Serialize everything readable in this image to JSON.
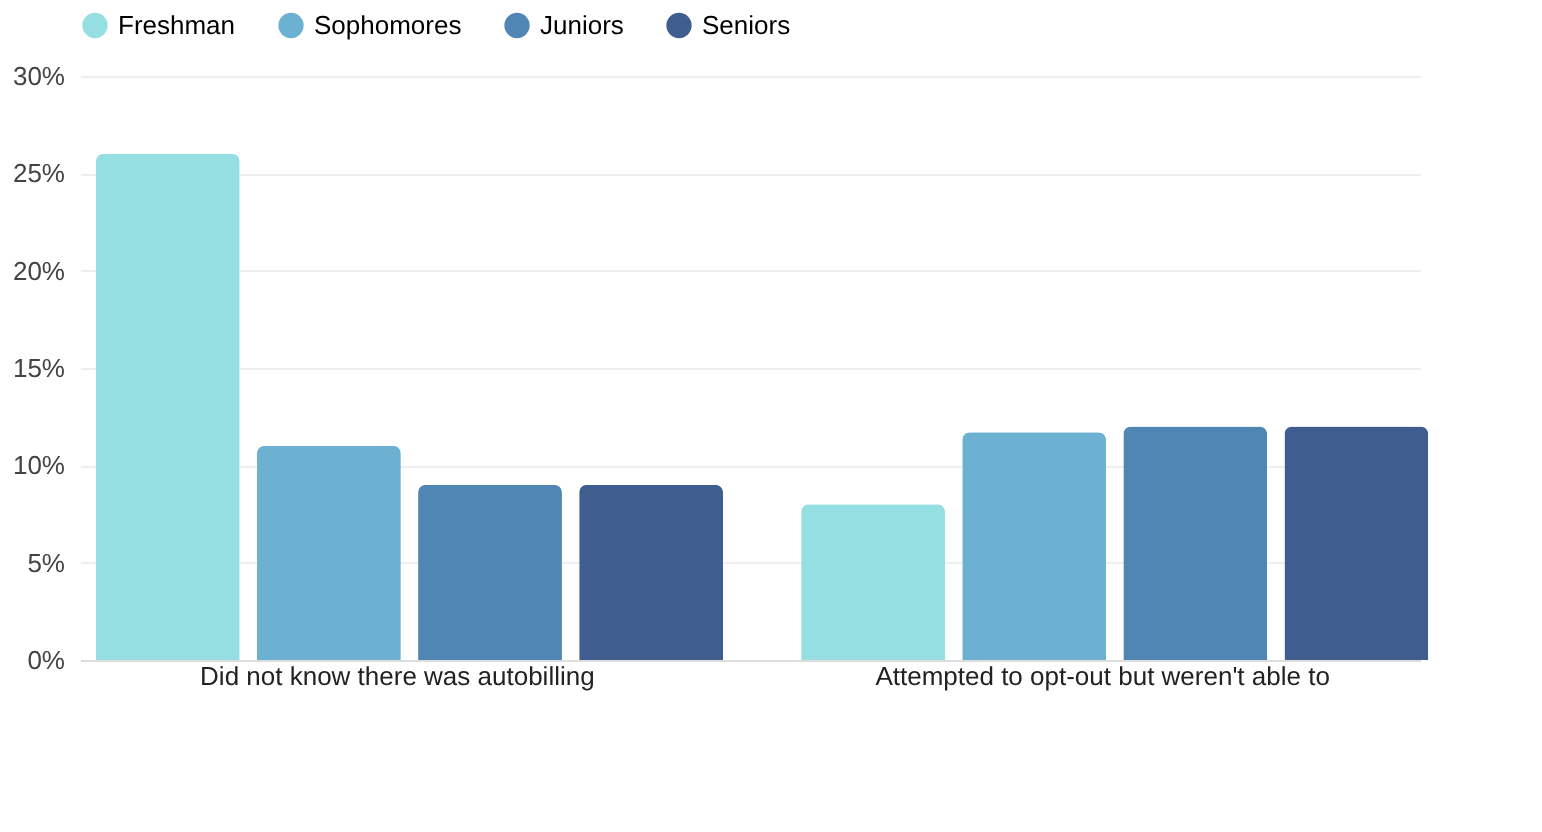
{
  "chart_data": {
    "type": "bar",
    "categories": [
      "Did not know there was autobilling",
      "Attempted to opt-out but weren't able to"
    ],
    "series": [
      {
        "name": "Freshman",
        "color": "#95dfe3",
        "values": [
          26,
          8
        ]
      },
      {
        "name": "Sophomores",
        "color": "#6cb1d1",
        "values": [
          11,
          11.7
        ]
      },
      {
        "name": "Juniors",
        "color": "#4f86b4",
        "values": [
          9,
          12
        ]
      },
      {
        "name": "Seniors",
        "color": "#3f5d8f",
        "values": [
          9,
          12
        ]
      }
    ],
    "ylim": [
      0,
      30
    ],
    "yticks": [
      {
        "value": 0,
        "label": "0%"
      },
      {
        "value": 5,
        "label": "5%"
      },
      {
        "value": 10,
        "label": "10%"
      },
      {
        "value": 15,
        "label": "15%"
      },
      {
        "value": 20,
        "label": "20%"
      },
      {
        "value": 25,
        "label": "25%"
      },
      {
        "value": 30,
        "label": "30%"
      }
    ],
    "grid": "y",
    "legend": "top"
  }
}
